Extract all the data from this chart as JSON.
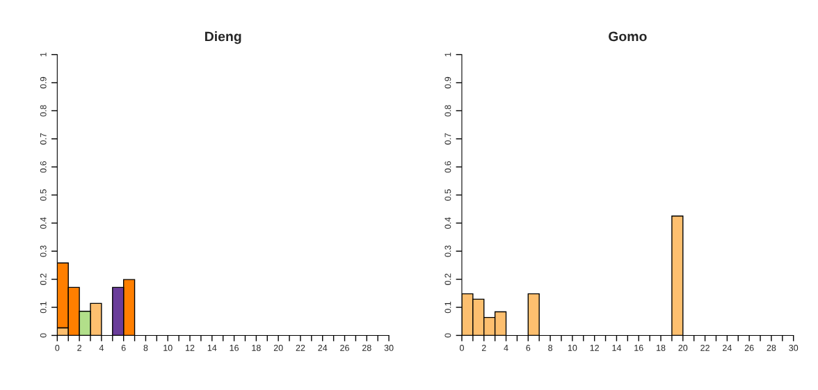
{
  "chart_data": [
    {
      "type": "bar",
      "title": "Dieng",
      "stacked": true,
      "x": [
        0.5,
        1.5,
        2.5,
        3.5,
        4.5,
        5.5,
        6.5,
        7.5,
        8.5,
        9.5,
        10.5,
        11.5,
        12.5,
        13.5,
        14.5,
        15.5,
        16.5,
        17.5,
        18.5,
        19.5,
        20.5,
        21.5,
        22.5,
        23.5,
        24.5,
        25.5,
        26.5,
        27.5,
        28.5,
        29.5
      ],
      "series": [
        {
          "color": "#fdbf6f",
          "values": [
            0.027,
            0,
            0,
            0.114,
            0,
            0,
            0,
            0,
            0,
            0,
            0,
            0,
            0,
            0,
            0,
            0,
            0,
            0,
            0,
            0,
            0,
            0,
            0,
            0,
            0,
            0,
            0,
            0,
            0,
            0
          ]
        },
        {
          "color": "#ff7f00",
          "values": [
            0.231,
            0.171,
            0,
            0,
            0,
            0,
            0.199,
            0,
            0,
            0,
            0,
            0,
            0,
            0,
            0,
            0,
            0,
            0,
            0,
            0,
            0,
            0,
            0,
            0,
            0,
            0,
            0,
            0,
            0,
            0
          ]
        },
        {
          "color": "#b2df8a",
          "values": [
            0,
            0,
            0.086,
            0,
            0,
            0,
            0,
            0,
            0,
            0,
            0,
            0,
            0,
            0,
            0,
            0,
            0,
            0,
            0,
            0,
            0,
            0,
            0,
            0,
            0,
            0,
            0,
            0,
            0,
            0
          ]
        },
        {
          "color": "#6a3d9a",
          "values": [
            0,
            0,
            0,
            0,
            0,
            0.171,
            0,
            0,
            0,
            0,
            0,
            0,
            0,
            0,
            0,
            0,
            0,
            0,
            0,
            0,
            0,
            0,
            0,
            0,
            0,
            0,
            0,
            0,
            0,
            0
          ]
        }
      ],
      "xlim": [
        0,
        30
      ],
      "xticks": [
        0,
        {
          "value": 1,
          "label": null
        },
        2,
        {
          "value": 3,
          "label": null
        },
        4,
        {
          "value": 5,
          "label": null
        },
        6,
        {
          "value": 7,
          "label": null
        },
        8,
        {
          "value": 9,
          "label": null
        },
        10,
        {
          "value": 11,
          "label": null
        },
        12,
        {
          "value": 13,
          "label": null
        },
        14,
        {
          "value": 15,
          "label": null
        },
        16,
        {
          "value": 17,
          "label": null
        },
        18,
        {
          "value": 19,
          "label": null
        },
        20,
        {
          "value": 21,
          "label": null
        },
        22,
        {
          "value": 23,
          "label": null
        },
        24,
        {
          "value": 25,
          "label": null
        },
        26,
        {
          "value": 27,
          "label": null
        },
        28,
        {
          "value": 29,
          "label": null
        },
        30
      ],
      "ylim": [
        0,
        1
      ],
      "yticks": [
        0,
        0.1,
        0.2,
        0.3,
        0.4,
        0.5,
        0.6,
        0.7,
        0.8,
        0.9,
        1
      ],
      "grid": false,
      "legend": false
    },
    {
      "type": "bar",
      "title": "Gomo",
      "x": [
        0.5,
        1.5,
        2.5,
        3.5,
        4.5,
        5.5,
        6.5,
        7.5,
        8.5,
        9.5,
        10.5,
        11.5,
        12.5,
        13.5,
        14.5,
        15.5,
        16.5,
        17.5,
        18.5,
        19.5,
        20.5,
        21.5,
        22.5,
        23.5,
        24.5,
        25.5,
        26.5,
        27.5,
        28.5,
        29.5
      ],
      "series": [
        {
          "color": "#fdbf6f",
          "values": [
            0.148,
            0.129,
            0.064,
            0.084,
            0,
            0,
            0.148,
            0,
            0,
            0,
            0,
            0,
            0,
            0,
            0,
            0,
            0,
            0,
            0,
            0.425,
            0,
            0,
            0,
            0,
            0,
            0,
            0,
            0,
            0,
            0
          ]
        }
      ],
      "xlim": [
        0,
        30
      ],
      "xticks": [
        0,
        {
          "value": 1,
          "label": null
        },
        2,
        {
          "value": 3,
          "label": null
        },
        4,
        {
          "value": 5,
          "label": null
        },
        6,
        {
          "value": 7,
          "label": null
        },
        8,
        {
          "value": 9,
          "label": null
        },
        10,
        {
          "value": 11,
          "label": null
        },
        12,
        {
          "value": 13,
          "label": null
        },
        14,
        {
          "value": 15,
          "label": null
        },
        16,
        {
          "value": 17,
          "label": null
        },
        18,
        {
          "value": 19,
          "label": null
        },
        20,
        {
          "value": 21,
          "label": null
        },
        22,
        {
          "value": 23,
          "label": null
        },
        24,
        {
          "value": 25,
          "label": null
        },
        26,
        {
          "value": 27,
          "label": null
        },
        28,
        {
          "value": 29,
          "label": null
        },
        30
      ],
      "ylim": [
        0,
        1
      ],
      "yticks": [
        0,
        0.1,
        0.2,
        0.3,
        0.4,
        0.5,
        0.6,
        0.7,
        0.8,
        0.9,
        1
      ],
      "grid": false,
      "legend": false
    }
  ]
}
